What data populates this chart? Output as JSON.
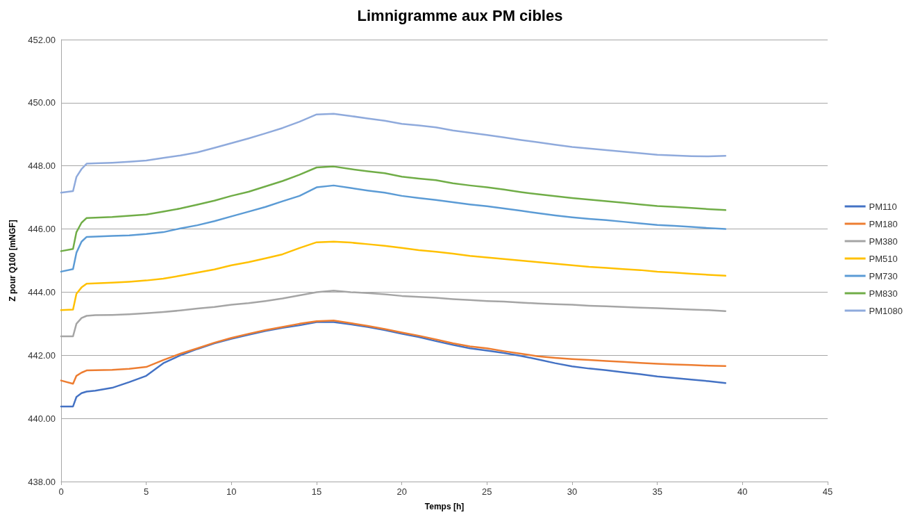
{
  "chart_data": {
    "type": "line",
    "title": "Limnigramme aux PM cibles",
    "xlabel": "Temps [h]",
    "ylabel": "Z pour Q100 [mNGF]",
    "x": [
      0,
      0.7,
      0.9,
      1.2,
      1.5,
      2,
      3,
      4,
      5,
      6,
      7,
      8,
      9,
      10,
      11,
      12,
      13,
      14,
      15,
      16,
      17,
      18,
      19,
      20,
      21,
      22,
      23,
      24,
      25,
      26,
      27,
      28,
      29,
      30,
      31,
      32,
      33,
      34,
      35,
      36,
      37,
      38,
      39
    ],
    "series": [
      {
        "name": "PM110",
        "color": "#4472c4",
        "values": [
          440.38,
          440.38,
          440.68,
          440.8,
          440.85,
          440.88,
          440.97,
          441.15,
          441.35,
          441.75,
          442.0,
          442.2,
          442.38,
          442.52,
          442.65,
          442.77,
          442.87,
          442.95,
          443.05,
          443.05,
          442.98,
          442.9,
          442.8,
          442.68,
          442.58,
          442.45,
          442.33,
          442.22,
          442.15,
          442.07,
          441.98,
          441.87,
          441.75,
          441.65,
          441.58,
          441.53,
          441.46,
          441.4,
          441.33,
          441.28,
          441.23,
          441.18,
          441.12
        ]
      },
      {
        "name": "PM180",
        "color": "#ed7d31",
        "values": [
          441.2,
          441.1,
          441.35,
          441.45,
          441.52,
          441.53,
          441.54,
          441.57,
          441.63,
          441.85,
          442.05,
          442.22,
          442.4,
          442.55,
          442.68,
          442.8,
          442.9,
          443.0,
          443.08,
          443.1,
          443.02,
          442.93,
          442.83,
          442.72,
          442.62,
          442.5,
          442.38,
          442.28,
          442.22,
          442.13,
          442.05,
          441.97,
          441.92,
          441.88,
          441.85,
          441.82,
          441.79,
          441.76,
          441.73,
          441.71,
          441.69,
          441.67,
          441.66
        ]
      },
      {
        "name": "PM380",
        "color": "#a5a5a5",
        "values": [
          442.6,
          442.6,
          443.0,
          443.18,
          443.25,
          443.27,
          443.28,
          443.3,
          443.33,
          443.37,
          443.42,
          443.48,
          443.53,
          443.6,
          443.65,
          443.72,
          443.8,
          443.9,
          444.0,
          444.05,
          444.0,
          443.97,
          443.93,
          443.88,
          443.85,
          443.82,
          443.78,
          443.75,
          443.72,
          443.7,
          443.67,
          443.64,
          443.62,
          443.6,
          443.57,
          443.55,
          443.53,
          443.51,
          443.49,
          443.47,
          443.45,
          443.43,
          443.4
        ]
      },
      {
        "name": "PM510",
        "color": "#ffc000",
        "values": [
          443.43,
          443.45,
          443.95,
          444.15,
          444.27,
          444.28,
          444.3,
          444.33,
          444.37,
          444.43,
          444.52,
          444.62,
          444.72,
          444.85,
          444.95,
          445.07,
          445.2,
          445.4,
          445.58,
          445.6,
          445.57,
          445.52,
          445.47,
          445.4,
          445.33,
          445.28,
          445.22,
          445.15,
          445.1,
          445.05,
          445.0,
          444.95,
          444.9,
          444.85,
          444.8,
          444.77,
          444.73,
          444.7,
          444.65,
          444.62,
          444.58,
          444.55,
          444.52
        ]
      },
      {
        "name": "PM730",
        "color": "#5b9bd5",
        "values": [
          444.65,
          444.73,
          445.25,
          445.6,
          445.75,
          445.76,
          445.78,
          445.8,
          445.84,
          445.9,
          446.02,
          446.12,
          446.25,
          446.4,
          446.55,
          446.7,
          446.88,
          447.05,
          447.32,
          447.38,
          447.3,
          447.22,
          447.15,
          447.05,
          446.98,
          446.92,
          446.85,
          446.78,
          446.72,
          446.65,
          446.58,
          446.5,
          446.43,
          446.37,
          446.32,
          446.28,
          446.23,
          446.18,
          446.13,
          446.1,
          446.07,
          446.03,
          446.0
        ]
      },
      {
        "name": "PM830",
        "color": "#70ad47",
        "values": [
          445.3,
          445.37,
          445.9,
          446.2,
          446.35,
          446.36,
          446.38,
          446.42,
          446.46,
          446.55,
          446.65,
          446.77,
          446.9,
          447.05,
          447.18,
          447.35,
          447.52,
          447.72,
          447.95,
          447.98,
          447.9,
          447.83,
          447.77,
          447.66,
          447.6,
          447.55,
          447.45,
          447.38,
          447.32,
          447.25,
          447.17,
          447.1,
          447.04,
          446.98,
          446.93,
          446.88,
          446.83,
          446.78,
          446.73,
          446.7,
          446.67,
          446.63,
          446.6
        ]
      },
      {
        "name": "PM1080",
        "color": "#8faadc",
        "values": [
          447.15,
          447.2,
          447.65,
          447.9,
          448.07,
          448.08,
          448.1,
          448.13,
          448.17,
          448.25,
          448.33,
          448.43,
          448.57,
          448.72,
          448.87,
          449.03,
          449.2,
          449.4,
          449.63,
          449.65,
          449.58,
          449.5,
          449.43,
          449.33,
          449.28,
          449.22,
          449.12,
          449.05,
          448.98,
          448.9,
          448.82,
          448.75,
          448.67,
          448.6,
          448.55,
          448.5,
          448.45,
          448.4,
          448.35,
          448.33,
          448.31,
          448.3,
          448.32
        ]
      }
    ],
    "xlim": [
      0,
      45
    ],
    "xticks": [
      0,
      5,
      10,
      15,
      20,
      25,
      30,
      35,
      40,
      45
    ],
    "ylim": [
      438,
      452
    ],
    "yticks": [
      {
        "value": 438,
        "label": "438.00"
      },
      {
        "value": 440,
        "label": "440.00"
      },
      {
        "value": 442,
        "label": "442.00"
      },
      {
        "value": 444,
        "label": "444.00"
      },
      {
        "value": 446,
        "label": "446.00"
      },
      {
        "value": 448,
        "label": "448.00"
      },
      {
        "value": 450,
        "label": "450.00"
      },
      {
        "value": 452,
        "label": "452.00"
      }
    ],
    "grid": "y",
    "legend": "right",
    "marker": "none",
    "line_style": "solid"
  }
}
